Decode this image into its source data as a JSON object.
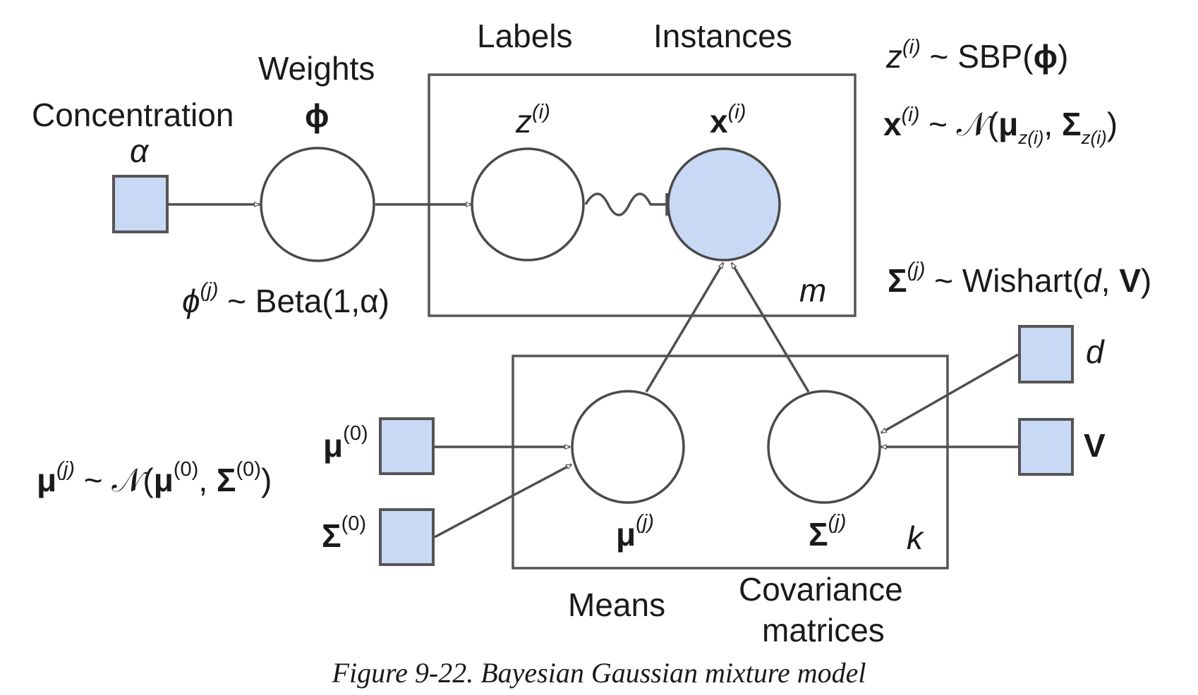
{
  "labels": {
    "concentration": "Concentration",
    "weights": "Weights",
    "labels": "Labels",
    "instances": "Instances",
    "means": "Means",
    "covariance_line1": "Covariance",
    "covariance_line2": "matrices"
  },
  "symbols": {
    "alpha": "α",
    "phi": "ϕ",
    "z": "z",
    "x": "x",
    "i_sup": "(i)",
    "j_sup": "(j)",
    "zero_sup": "(0)",
    "mu": "μ",
    "sigma": "Σ",
    "d": "d",
    "v": "V",
    "m": "m",
    "k": "k"
  },
  "formulas": {
    "phi_prior": {
      "lhs": "ϕ",
      "sup": "(j)",
      "rhs": " ~ Beta(1,α)"
    },
    "z_prior": {
      "lhs": "z",
      "sup": "(i)",
      "rhs_a": " ~ SBP(",
      "rhs_b": "ϕ",
      "rhs_c": ")"
    },
    "x_likelihood": {
      "lhs": "x",
      "sup": "(i)",
      "rhs_a": " ~ 𝒩(",
      "mu": "μ",
      "sub": "z(i)",
      "comma": ", ",
      "sigma": "Σ",
      "close": ")"
    },
    "sigma_prior": {
      "lhs": "Σ",
      "sup": "(j)",
      "rhs_a": " ~ Wishart(",
      "d": "d",
      "comma": ", ",
      "v": "V",
      "close": ")"
    },
    "mu_prior": {
      "lhs": "μ",
      "sup": "(j)",
      "rhs_a": " ~ 𝒩(",
      "mu": "μ",
      "sup0": "(0)",
      "comma": ", ",
      "sigma": "Σ",
      "close": ")"
    }
  },
  "caption": "Figure 9-22. Bayesian Gaussian mixture model",
  "colors": {
    "observed_fill": "#c8d9f6",
    "hyperparameter_fill": "#c8d9f6",
    "stroke": "#4a4a4a"
  }
}
